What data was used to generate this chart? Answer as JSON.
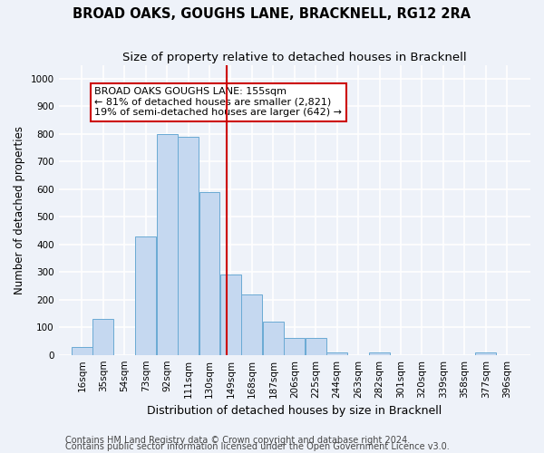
{
  "title": "BROAD OAKS, GOUGHS LANE, BRACKNELL, RG12 2RA",
  "subtitle": "Size of property relative to detached houses in Bracknell",
  "xlabel": "Distribution of detached houses by size in Bracknell",
  "ylabel": "Number of detached properties",
  "bin_labels": [
    "16sqm",
    "35sqm",
    "54sqm",
    "73sqm",
    "92sqm",
    "111sqm",
    "130sqm",
    "149sqm",
    "168sqm",
    "187sqm",
    "206sqm",
    "225sqm",
    "244sqm",
    "263sqm",
    "282sqm",
    "301sqm",
    "320sqm",
    "339sqm",
    "358sqm",
    "377sqm",
    "396sqm"
  ],
  "bin_left_edges": [
    16,
    35,
    54,
    73,
    92,
    111,
    130,
    149,
    168,
    187,
    206,
    225,
    244,
    263,
    282,
    301,
    320,
    339,
    358,
    377,
    396
  ],
  "bar_heights": [
    30,
    130,
    0,
    430,
    800,
    790,
    590,
    290,
    220,
    120,
    60,
    60,
    10,
    0,
    10,
    0,
    0,
    0,
    0,
    10,
    0
  ],
  "bar_color": "#c5d8f0",
  "bar_edge_color": "#6aaad4",
  "property_value": 155,
  "vline_color": "#cc0000",
  "annotation_text": "BROAD OAKS GOUGHS LANE: 155sqm\n← 81% of detached houses are smaller (2,821)\n19% of semi-detached houses are larger (642) →",
  "annotation_box_facecolor": "#ffffff",
  "annotation_box_edgecolor": "#cc0000",
  "ylim": [
    0,
    1050
  ],
  "yticks": [
    0,
    100,
    200,
    300,
    400,
    500,
    600,
    700,
    800,
    900,
    1000
  ],
  "footer1": "Contains HM Land Registry data © Crown copyright and database right 2024.",
  "footer2": "Contains public sector information licensed under the Open Government Licence v3.0.",
  "bg_color": "#eef2f9",
  "grid_color": "#ffffff",
  "title_fontsize": 10.5,
  "subtitle_fontsize": 9.5,
  "ylabel_fontsize": 8.5,
  "xlabel_fontsize": 9,
  "tick_fontsize": 7.5,
  "annotation_fontsize": 8,
  "footer_fontsize": 7
}
